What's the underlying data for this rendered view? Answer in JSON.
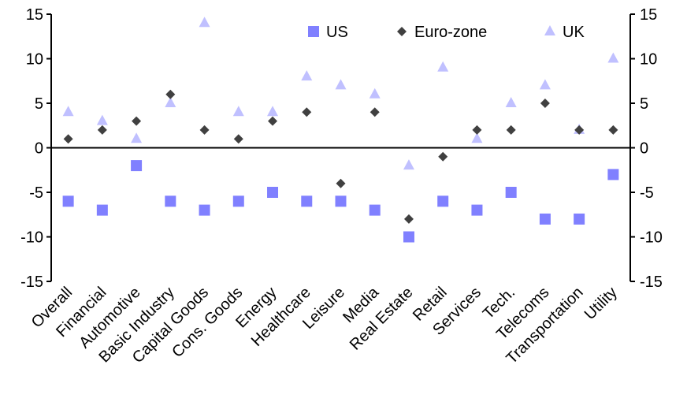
{
  "chart_data": {
    "type": "scatter",
    "title": "",
    "xlabel": "",
    "ylabel": "",
    "ylim": [
      -15,
      15
    ],
    "yticks": [
      -15,
      -10,
      -5,
      0,
      5,
      10,
      15
    ],
    "secondary_y": true,
    "grid": false,
    "legend_position": "top-right",
    "categories": [
      "Overall",
      "Financial",
      "Automotive",
      "Basic Industry",
      "Capital Goods",
      "Cons. Goods",
      "Energy",
      "Healthcare",
      "Leisure",
      "Media",
      "Real Estate",
      "Retail",
      "Services",
      "Tech.",
      "Telecoms",
      "Transportation",
      "Utility"
    ],
    "series": [
      {
        "name": "US",
        "marker": "square",
        "color": "#8080ff",
        "values": [
          -6,
          -7,
          -2,
          -6,
          -7,
          -6,
          -5,
          -6,
          -6,
          -7,
          -10,
          -6,
          -7,
          -5,
          -8,
          -8,
          -3
        ]
      },
      {
        "name": "Euro-zone",
        "marker": "diamond",
        "color": "#404040",
        "values": [
          1,
          2,
          3,
          6,
          2,
          1,
          3,
          4,
          -4,
          4,
          -8,
          -1,
          2,
          2,
          5,
          2,
          2
        ]
      },
      {
        "name": "UK",
        "marker": "triangle",
        "color": "#c0c0ff",
        "values": [
          4,
          3,
          1,
          5,
          14,
          4,
          4,
          8,
          7,
          6,
          -2,
          9,
          1,
          5,
          7,
          2,
          10
        ]
      }
    ]
  }
}
